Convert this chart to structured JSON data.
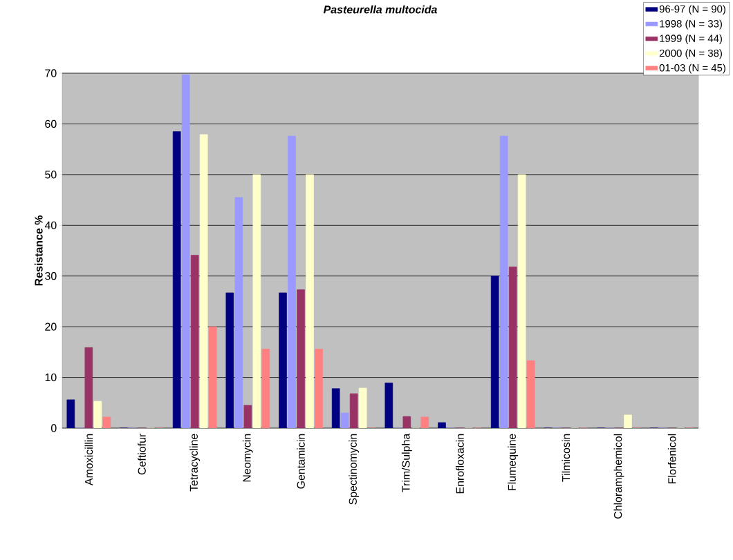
{
  "chart_data": {
    "type": "bar",
    "title": "*Pasteurella multocida*",
    "ylabel": "Resistance %",
    "categories": [
      "Amoxicillin",
      "Ceftiofur",
      "Tetracycline",
      "Neomycin",
      "Gentamicin",
      "Spectinomycin",
      "Trim/Sulpha",
      "Enrofloxacin",
      "Flumequine",
      "Tilmicosin",
      "Chloramphemicol",
      "Florfenicol"
    ],
    "series": [
      {
        "name": "96-97 (N = 90)",
        "color": "#000080",
        "values": [
          5.6,
          0,
          58.5,
          26.7,
          26.7,
          7.8,
          8.9,
          1.1,
          30,
          0,
          0,
          0
        ]
      },
      {
        "name": "1998 (N = 33)",
        "color": "#9999ff",
        "values": [
          0,
          0,
          69.7,
          45.5,
          57.6,
          3,
          0,
          0,
          57.6,
          0,
          0,
          0
        ]
      },
      {
        "name": "1999 (N = 44)",
        "color": "#993366",
        "values": [
          15.9,
          0,
          34.1,
          4.5,
          27.3,
          6.8,
          2.3,
          0,
          31.8,
          0,
          0,
          0
        ]
      },
      {
        "name": "2000 (N = 38)",
        "color": "#ffffcc",
        "values": [
          5.3,
          0,
          57.9,
          50,
          50,
          7.9,
          0,
          0,
          50,
          0,
          2.6,
          0
        ]
      },
      {
        "name": "01-03 (N = 45)",
        "color": "#ff8080",
        "values": [
          2.2,
          0,
          20,
          15.6,
          15.6,
          0,
          2.2,
          0,
          13.3,
          0,
          0,
          0
        ]
      }
    ],
    "ylim": [
      0,
      70
    ],
    "yticks": [
      0,
      10,
      20,
      30,
      40,
      50,
      60,
      70
    ],
    "grid": "y",
    "legend": "top right"
  }
}
